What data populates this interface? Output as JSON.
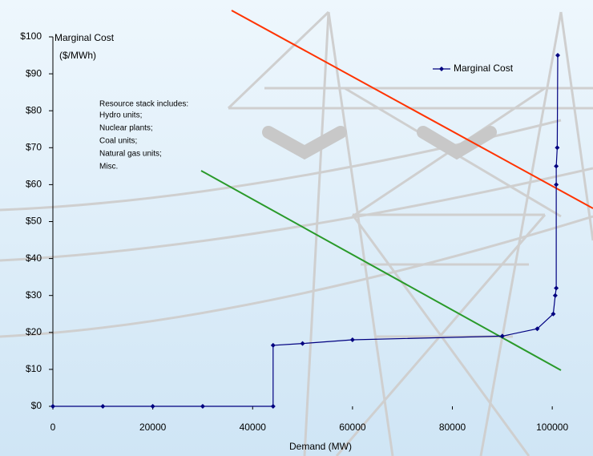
{
  "chart_data": {
    "type": "line",
    "ylabel": [
      "Marginal Cost",
      "($/MWh)"
    ],
    "xlabel": "Demand (MW)",
    "annotation": [
      "Resource stack includes:",
      "Hydro units;",
      "Nuclear plants;",
      "Coal units;",
      "Natural gas units;",
      "Misc."
    ],
    "x": [
      0,
      10000,
      20000,
      30000,
      44100,
      44100,
      50000,
      60000,
      90000,
      97000,
      100200,
      100600,
      100800,
      100800,
      100800,
      101000,
      101100
    ],
    "series": [
      {
        "name": "Marginal Cost",
        "color": "#000080",
        "values": [
          0,
          0,
          0,
          0,
          0,
          16.5,
          17,
          18,
          19,
          21,
          25,
          30,
          32,
          60,
          65,
          70,
          95
        ]
      }
    ],
    "xlim": [
      0,
      108000
    ],
    "xticks": [
      0,
      20000,
      40000,
      60000,
      80000,
      100000
    ],
    "ylim": [
      0,
      100
    ],
    "yticks": [
      {
        "value": 0,
        "label": "$0"
      },
      {
        "value": 10,
        "label": "$10"
      },
      {
        "value": 20,
        "label": "$20"
      },
      {
        "value": 30,
        "label": "$30"
      },
      {
        "value": 40,
        "label": "$40"
      },
      {
        "value": 50,
        "label": "$50"
      },
      {
        "value": 60,
        "label": "$60"
      },
      {
        "value": 70,
        "label": "$70"
      },
      {
        "value": 80,
        "label": "$80"
      },
      {
        "value": 90,
        "label": "$90"
      },
      {
        "value": 100,
        "label": "$100"
      }
    ],
    "legend": "upper right"
  }
}
